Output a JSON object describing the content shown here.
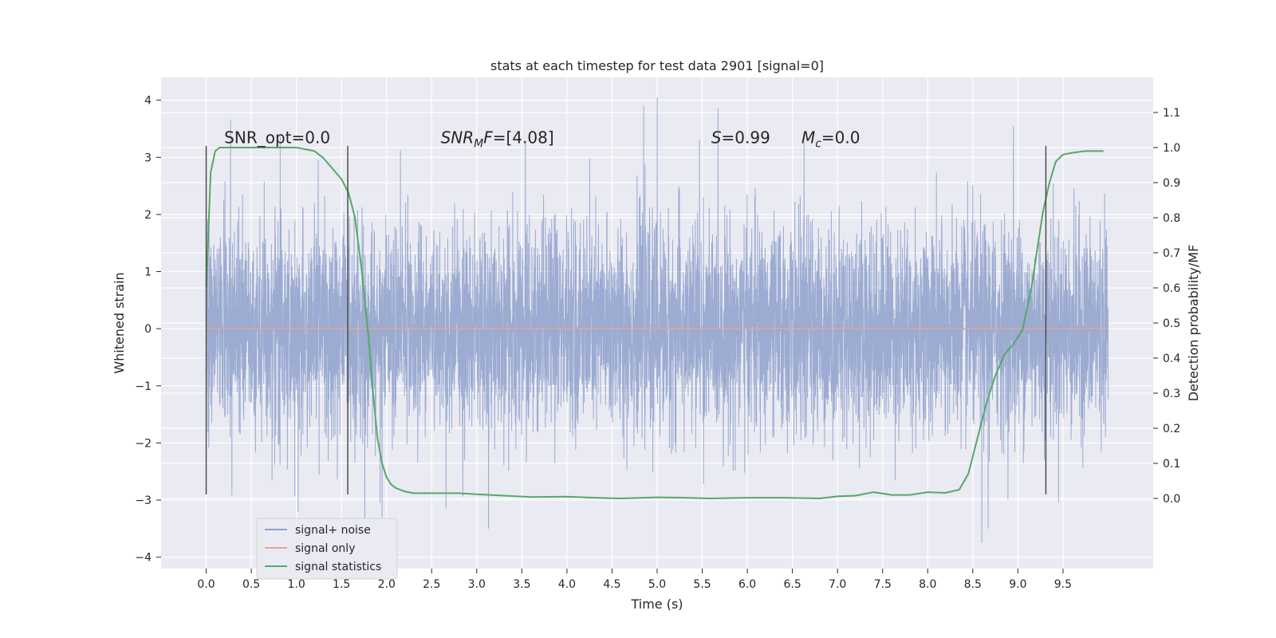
{
  "chart_data": {
    "type": "line",
    "title": "stats at each timestep for test data 2901 [signal=0]",
    "xlabel": "Time (s)",
    "ylabel_left": "Whitened strain",
    "ylabel_right": "Detection probability/MF",
    "xlim": [
      -0.5,
      10.5
    ],
    "ylim_left": [
      -4.2,
      4.4
    ],
    "ylim_right": [
      -0.2,
      1.2
    ],
    "xticks": [
      0.0,
      0.5,
      1.0,
      1.5,
      2.0,
      2.5,
      3.0,
      3.5,
      4.0,
      4.5,
      5.0,
      5.5,
      6.0,
      6.5,
      7.0,
      7.5,
      8.0,
      8.5,
      9.0,
      9.5
    ],
    "xtick_labels": [
      "0.0",
      "0.5",
      "1.0",
      "1.5",
      "2.0",
      "2.5",
      "3.0",
      "3.5",
      "4.0",
      "4.5",
      "5.0",
      "5.5",
      "6.0",
      "6.5",
      "7.0",
      "7.5",
      "8.0",
      "8.5",
      "9.0",
      "9.5"
    ],
    "yticks_left": [
      -4,
      -3,
      -2,
      -1,
      0,
      1,
      2,
      3,
      4
    ],
    "ytick_labels_left": [
      "−4",
      "−3",
      "−2",
      "−1",
      "0",
      "1",
      "2",
      "3",
      "4"
    ],
    "yticks_right": [
      0.0,
      0.1,
      0.2,
      0.3,
      0.4,
      0.5,
      0.6,
      0.7,
      0.8,
      0.9,
      1.0,
      1.1
    ],
    "ytick_labels_right": [
      "0.0",
      "0.1",
      "0.2",
      "0.3",
      "0.4",
      "0.5",
      "0.6",
      "0.7",
      "0.8",
      "0.9",
      "1.0",
      "1.1"
    ],
    "grid": true,
    "legend_position": "bottom-left",
    "series": [
      {
        "name": "signal+ noise",
        "color": "#8da0cb",
        "axis": "left",
        "x_range": [
          0.0,
          10.0
        ],
        "mean": 0.0,
        "std": 0.9,
        "x": [
          0.27,
          0.82,
          1.02,
          1.95,
          3.13,
          4.85,
          5.0,
          5.47,
          6.63,
          8.95,
          8.6,
          8.67
        ],
        "values": [
          3.65,
          3.4,
          -3.2,
          -3.3,
          -3.5,
          3.9,
          4.05,
          3.3,
          3.25,
          3.55,
          -3.75,
          -3.5
        ]
      },
      {
        "name": "signal only",
        "color": "#e8a58c",
        "axis": "left",
        "x": [
          0.0,
          10.0
        ],
        "values": [
          0.0,
          0.0
        ]
      },
      {
        "name": "signal statistics",
        "color": "#55a868",
        "axis": "right",
        "x": [
          0.0,
          0.05,
          0.1,
          0.15,
          0.25,
          0.4,
          0.6,
          0.8,
          1.0,
          1.2,
          1.3,
          1.4,
          1.5,
          1.58,
          1.65,
          1.72,
          1.8,
          1.85,
          1.9,
          1.95,
          2.0,
          2.05,
          2.1,
          2.2,
          2.3,
          2.5,
          2.8,
          3.0,
          3.3,
          3.6,
          4.0,
          4.3,
          4.6,
          5.0,
          5.3,
          5.6,
          6.0,
          6.4,
          6.8,
          7.0,
          7.2,
          7.4,
          7.6,
          7.8,
          8.0,
          8.2,
          8.35,
          8.45,
          8.55,
          8.65,
          8.75,
          8.85,
          8.95,
          9.05,
          9.15,
          9.22,
          9.28,
          9.35,
          9.42,
          9.5,
          9.6,
          9.75,
          9.9,
          9.95
        ],
        "values": [
          0.6,
          0.93,
          0.99,
          1.0,
          1.0,
          1.0,
          1.0,
          1.0,
          1.0,
          0.99,
          0.97,
          0.94,
          0.91,
          0.87,
          0.8,
          0.66,
          0.46,
          0.3,
          0.17,
          0.1,
          0.06,
          0.04,
          0.03,
          0.02,
          0.015,
          0.015,
          0.015,
          0.012,
          0.008,
          0.004,
          0.005,
          0.002,
          0.0,
          0.003,
          0.002,
          0.0,
          0.002,
          0.002,
          0.0,
          0.006,
          0.008,
          0.018,
          0.01,
          0.01,
          0.018,
          0.016,
          0.025,
          0.07,
          0.17,
          0.27,
          0.35,
          0.41,
          0.44,
          0.48,
          0.6,
          0.72,
          0.82,
          0.9,
          0.96,
          0.98,
          0.985,
          0.99,
          0.99,
          0.99
        ]
      }
    ],
    "vlines": [
      {
        "x": 0.0,
        "ymin": -2.9,
        "ymax": 3.2
      },
      {
        "x": 1.57,
        "ymin": -2.9,
        "ymax": 3.2
      },
      {
        "x": 9.31,
        "ymin": -2.9,
        "ymax": 3.2
      }
    ],
    "annotations": {
      "snr_opt": {
        "text": "SNR_opt=0.0",
        "x": 0.2,
        "y": 3.25
      },
      "snr_mf": {
        "label": "SNR",
        "sub": "M",
        "rest": "F",
        "value": "=[4.08]",
        "x": 2.6,
        "y": 3.25
      },
      "s": {
        "label": "S",
        "value": "=0.99",
        "x": 5.6,
        "y": 3.25
      },
      "mc": {
        "label": "M",
        "sub": "c",
        "value": "=0.0",
        "x": 6.6,
        "y": 3.25
      }
    }
  }
}
